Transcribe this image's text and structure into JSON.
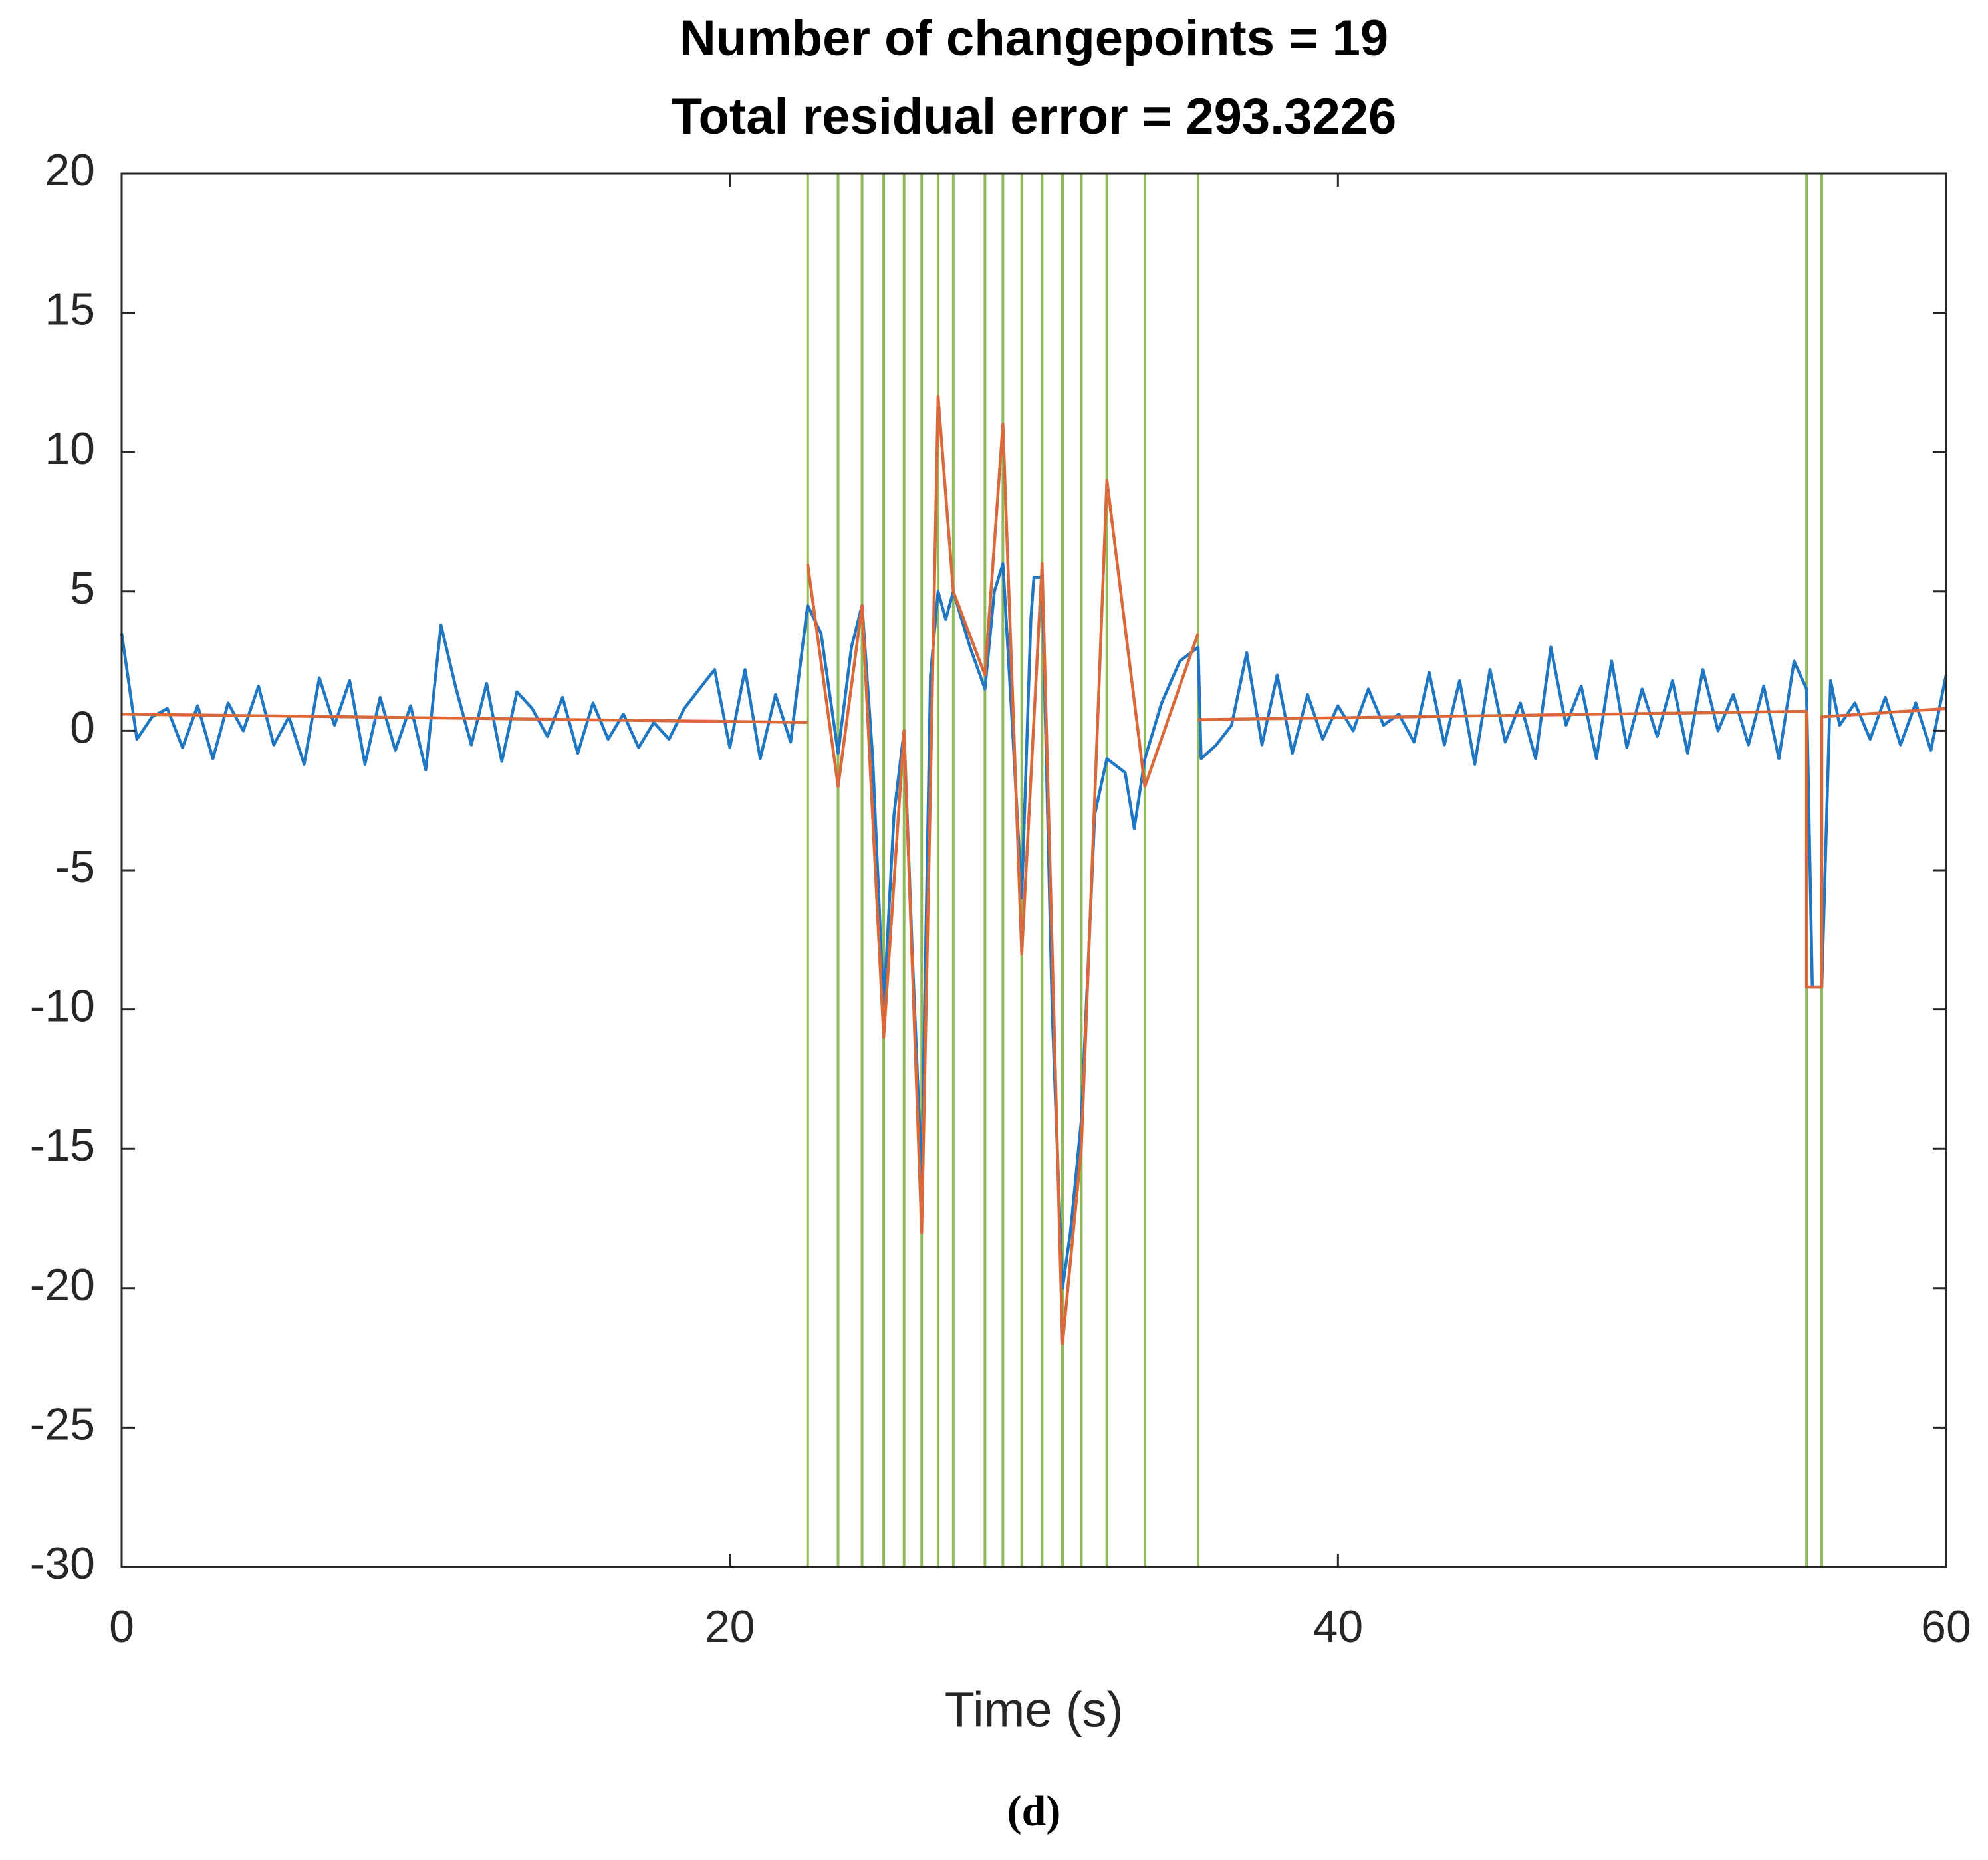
{
  "chart_data": {
    "type": "line",
    "title": [
      "Number of changepoints = 19",
      "Total residual error = 293.3226"
    ],
    "x_label": "Time (s)",
    "caption": "(d)",
    "xlim": [
      0,
      60
    ],
    "ylim": [
      -30,
      20
    ],
    "xticks": [
      0,
      20,
      40,
      60
    ],
    "yticks": [
      20,
      15,
      10,
      5,
      0,
      -5,
      -10,
      -15,
      -20,
      -25,
      -30
    ],
    "grid": false,
    "changepoint_color": "#8fba5a",
    "changepoints": [
      22.56,
      23.56,
      24.35,
      25.06,
      25.73,
      26.31,
      26.85,
      27.35,
      28.39,
      28.98,
      29.6,
      30.27,
      30.94,
      31.56,
      32.4,
      33.65,
      35.4,
      55.41,
      55.91
    ],
    "series": [
      {
        "color": "#1f77c4",
        "x": [
          0,
          0.5,
          1,
          1.5,
          2,
          2.5,
          3,
          3.5,
          4,
          4.5,
          5,
          5.5,
          6,
          6.5,
          7,
          7.5,
          8,
          8.5,
          9,
          9.5,
          10,
          10.5,
          11,
          11.5,
          12,
          12.5,
          13,
          13.5,
          14,
          14.5,
          15,
          15.5,
          16,
          16.5,
          17,
          17.5,
          18,
          18.5,
          19,
          19.5,
          20,
          20.5,
          21,
          21.5,
          22,
          22.56,
          23,
          23.56,
          24,
          24.35,
          24.7,
          25.06,
          25.4,
          25.73,
          26,
          26.31,
          26.6,
          26.85,
          27.1,
          27.35,
          27.9,
          28.39,
          28.7,
          28.98,
          29.3,
          29.6,
          29.9,
          30,
          30.27,
          30.6,
          30.94,
          31.2,
          31.56,
          32,
          32.4,
          33,
          33.3,
          33.65,
          34.2,
          34.8,
          35.4,
          35.5,
          36,
          36.5,
          37,
          37.5,
          38,
          38.5,
          39,
          39.5,
          40,
          40.5,
          41,
          41.5,
          42,
          42.5,
          43,
          43.5,
          44,
          44.5,
          45,
          45.5,
          46,
          46.5,
          47,
          47.5,
          48,
          48.5,
          49,
          49.5,
          50,
          50.5,
          51,
          51.5,
          52,
          52.5,
          53,
          53.5,
          54,
          54.5,
          55,
          55.41,
          55.6,
          55.91,
          56.2,
          56.5,
          57,
          57.5,
          58,
          58.5,
          59,
          59.5,
          60
        ],
        "values": [
          3.5,
          -0.3,
          0.5,
          0.8,
          -0.6,
          0.9,
          -1,
          1,
          0,
          1.6,
          -0.5,
          0.5,
          -1.2,
          1.9,
          0.2,
          1.8,
          -1.2,
          1.2,
          -0.7,
          0.9,
          -1.4,
          3.8,
          1.5,
          -0.5,
          1.7,
          -1.1,
          1.4,
          0.8,
          -0.2,
          1.2,
          -0.8,
          1,
          -0.3,
          0.6,
          -0.6,
          0.3,
          -0.3,
          0.8,
          1.5,
          2.2,
          -0.6,
          2.2,
          -1,
          1.3,
          -0.4,
          4.5,
          3.5,
          -0.8,
          3,
          4.5,
          -1,
          -10,
          -3,
          0,
          -8,
          -16,
          2,
          5,
          4,
          5,
          3,
          1.5,
          5,
          6,
          0,
          -6,
          4,
          5.5,
          5.5,
          -10,
          -20,
          -18,
          -14,
          -3,
          -1,
          -1.5,
          -3.5,
          -1,
          1,
          2.5,
          3,
          -1,
          -0.5,
          0.2,
          2.8,
          -0.5,
          2,
          -0.8,
          1.3,
          -0.3,
          0.9,
          0,
          1.5,
          0.2,
          0.6,
          -0.4,
          2.1,
          -0.5,
          1.8,
          -1.2,
          2.2,
          -0.4,
          1,
          -1,
          3,
          0.2,
          1.6,
          -1,
          2.5,
          -0.6,
          1.5,
          -0.2,
          1.8,
          -0.8,
          2.2,
          0,
          1.3,
          -0.5,
          1.6,
          -1,
          2.5,
          1.5,
          -9.2,
          -9.2,
          1.8,
          0.2,
          1,
          -0.3,
          1.2,
          -0.5,
          1,
          -0.7,
          2
        ]
      },
      {
        "color": "#d9693a",
        "x": [
          0,
          22.56,
          null,
          22.56,
          23.56,
          24.35,
          25.06,
          25.73,
          26.31,
          26.85,
          27.35,
          28.39,
          28.98,
          29.6,
          30.27,
          30.94,
          31.56,
          32.4,
          33.65,
          35.4,
          null,
          35.4,
          55.41,
          55.41,
          55.91,
          55.91,
          60
        ],
        "values": [
          0.6,
          0.3,
          null,
          6,
          -2,
          4.5,
          -11,
          0,
          -18,
          12,
          5,
          2,
          11,
          -8,
          6,
          -22,
          -15,
          9,
          -2,
          3.5,
          null,
          0.4,
          0.7,
          -9.2,
          -9.2,
          0.5,
          0.8
        ]
      }
    ]
  }
}
